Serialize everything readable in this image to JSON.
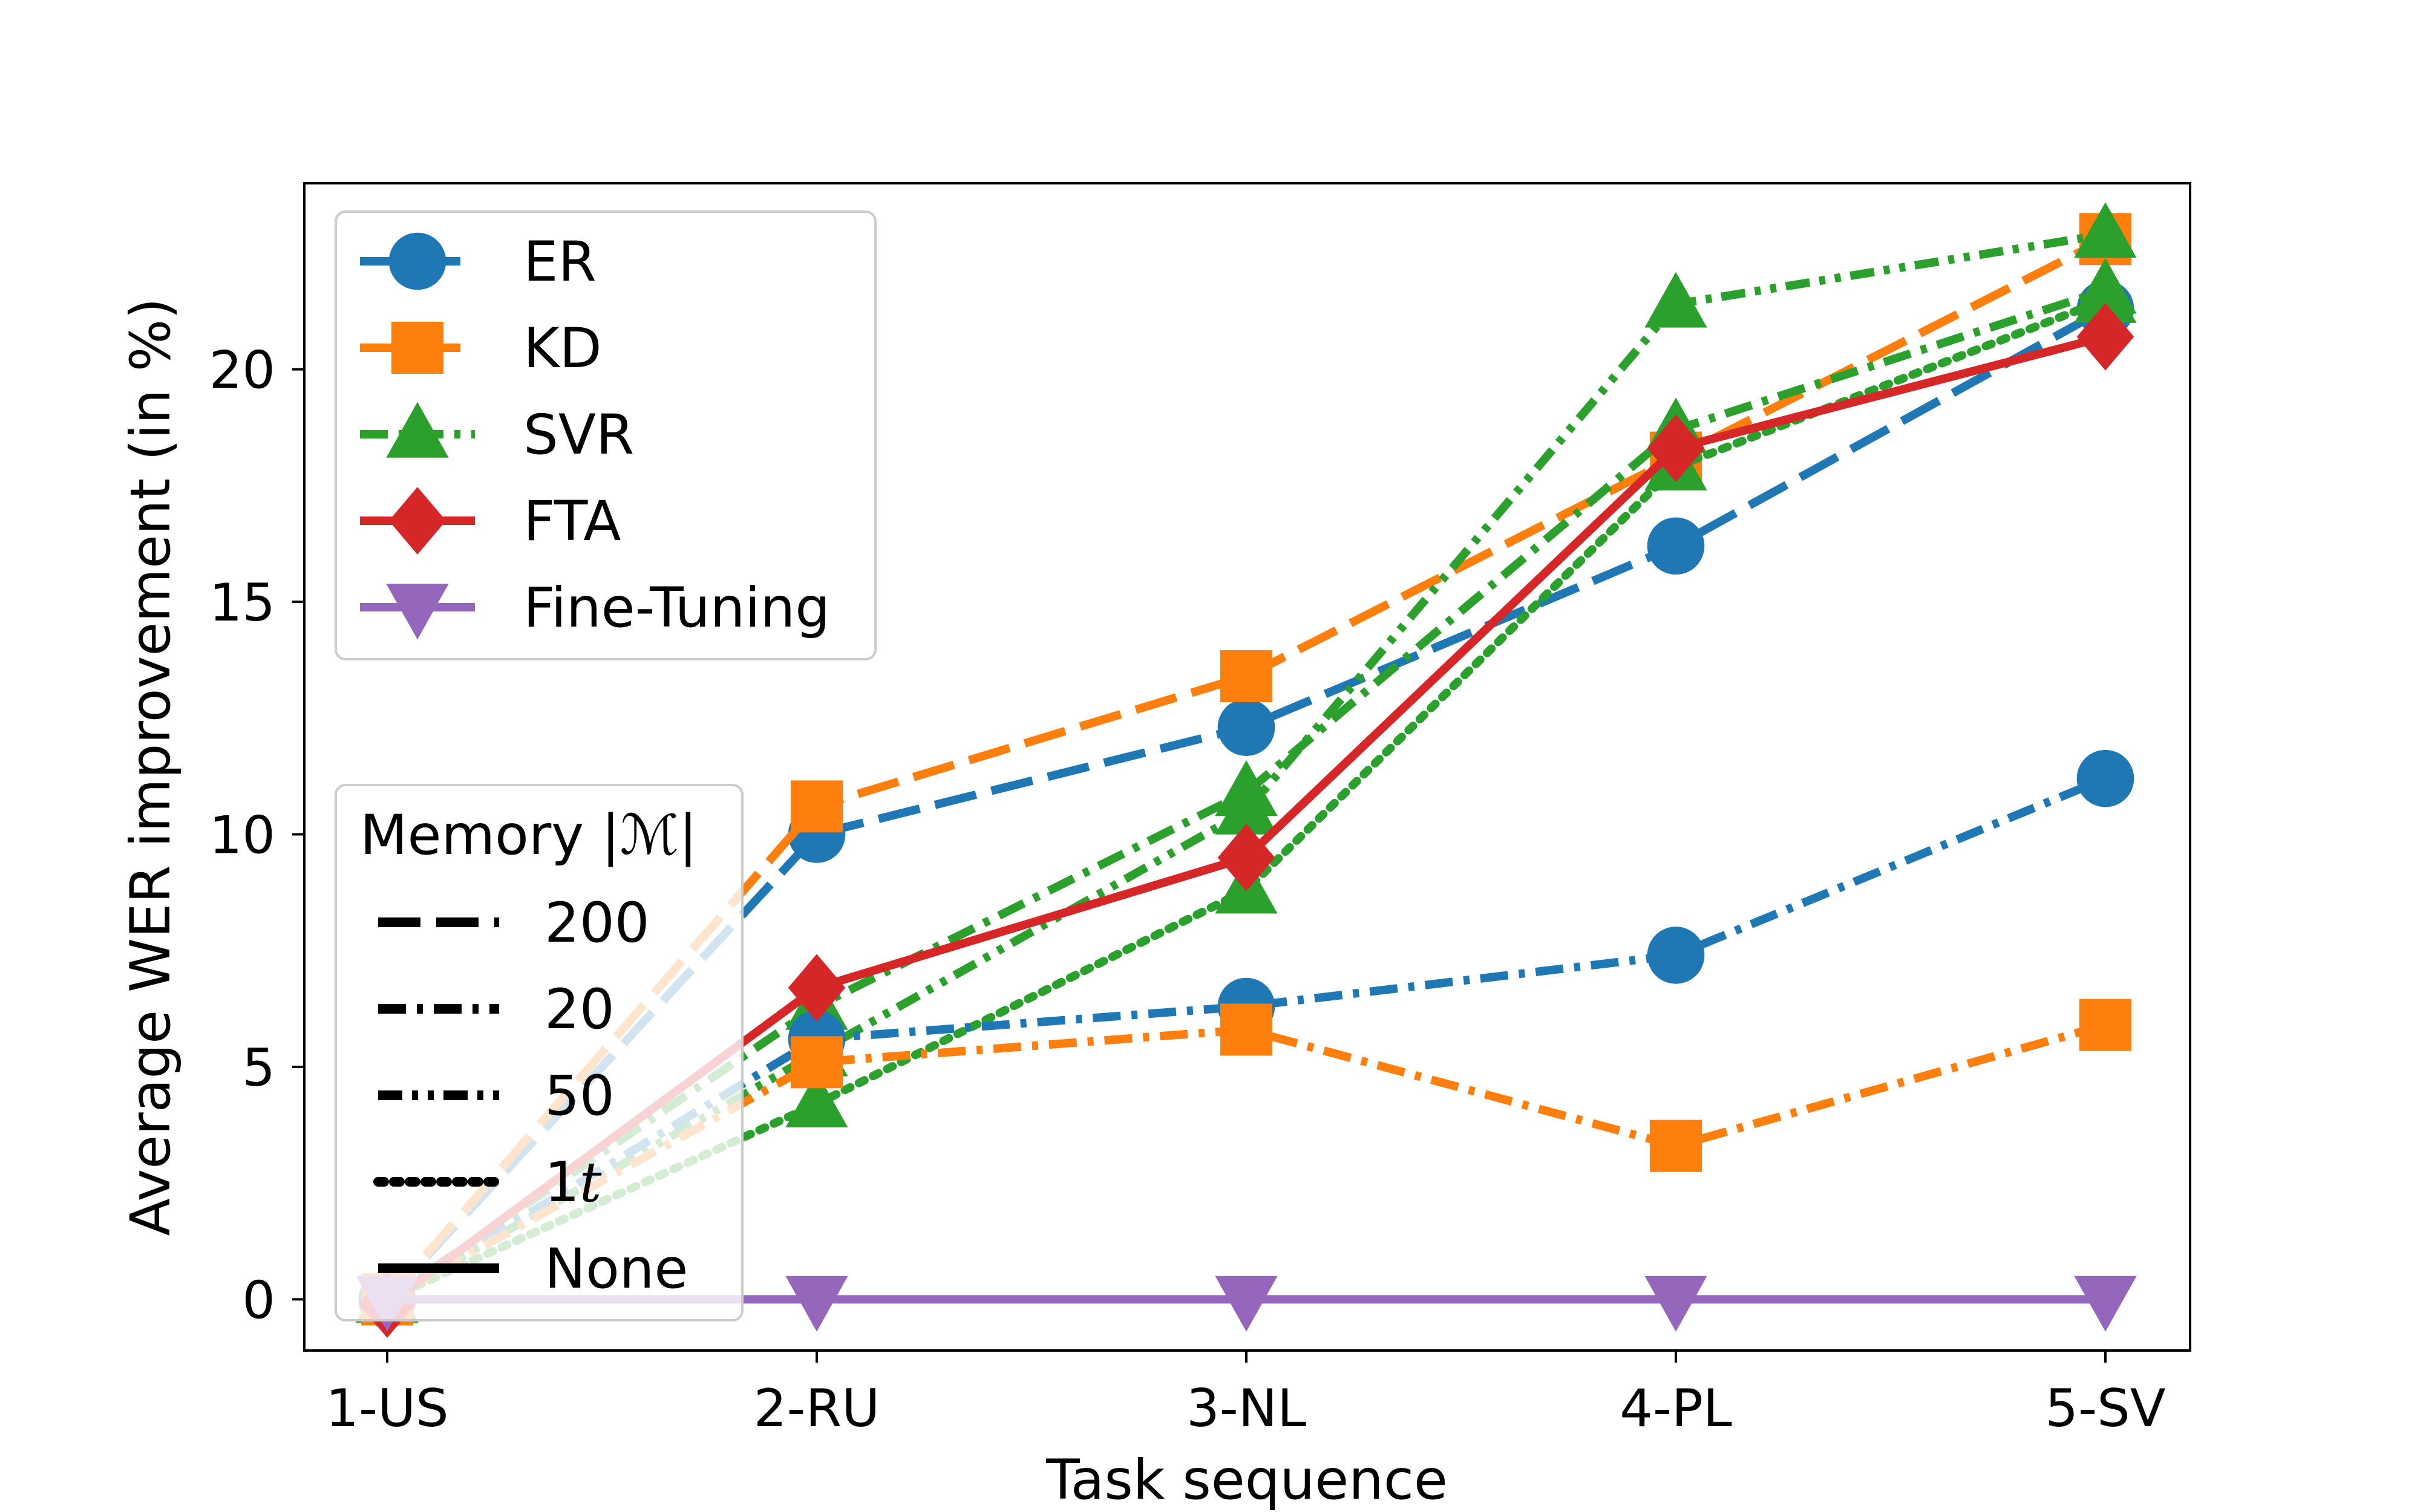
{
  "chart_data": {
    "type": "line",
    "title": "",
    "xlabel": "Task sequence",
    "ylabel": "Average WER improvement (in %)",
    "categories": [
      "1-US",
      "2-RU",
      "3-NL",
      "4-PL",
      "5-SV"
    ],
    "yticks": [
      "0",
      "5",
      "10",
      "15",
      "20"
    ],
    "ylim": [
      -1.1,
      24.0
    ],
    "grid": false,
    "methods": [
      {
        "name": "ER",
        "color": "#1f77b4",
        "marker": "circle"
      },
      {
        "name": "KD",
        "color": "#ff7f0e",
        "marker": "square"
      },
      {
        "name": "SVR",
        "color": "#2ca02c",
        "marker": "triangle-up"
      },
      {
        "name": "FTA",
        "color": "#d62728",
        "marker": "diamond"
      },
      {
        "name": "Fine-Tuning",
        "color": "#9467bd",
        "marker": "triangle-down"
      }
    ],
    "memory_legend": {
      "title": "Memory |ℳ|",
      "entries": [
        {
          "label": "200",
          "style": "long-dash"
        },
        {
          "label": "20",
          "style": "dash-dot"
        },
        {
          "label": "50",
          "style": "dash-dot-dot"
        },
        {
          "label": "1t",
          "style": "dotted"
        },
        {
          "label": "None",
          "style": "solid"
        }
      ]
    },
    "series": [
      {
        "name": "ER (200)",
        "method": "ER",
        "memory": "200",
        "values": [
          0,
          10.0,
          12.3,
          16.2,
          21.3
        ]
      },
      {
        "name": "KD (200)",
        "method": "KD",
        "memory": "200",
        "values": [
          0,
          10.6,
          13.4,
          18.1,
          22.8
        ]
      },
      {
        "name": "SVR (20)",
        "method": "SVR",
        "memory": "20",
        "values": [
          0,
          6.3,
          10.9,
          18.7,
          21.7
        ]
      },
      {
        "name": "SVR (50)",
        "method": "SVR",
        "memory": "50",
        "values": [
          0,
          5.3,
          10.5,
          21.4,
          22.9
        ]
      },
      {
        "name": "SVR (1t)",
        "method": "SVR",
        "memory": "1t",
        "values": [
          0,
          4.2,
          8.8,
          17.9,
          21.5
        ]
      },
      {
        "name": "ER (20)",
        "method": "ER",
        "memory": "20",
        "values": [
          0,
          5.6,
          6.3,
          7.4,
          11.2
        ]
      },
      {
        "name": "KD (20)",
        "method": "KD",
        "memory": "20",
        "values": [
          0,
          5.1,
          5.8,
          3.3,
          5.9
        ]
      },
      {
        "name": "FTA",
        "method": "FTA",
        "memory": "None",
        "values": [
          -0.1,
          6.7,
          9.5,
          18.3,
          20.7
        ]
      },
      {
        "name": "Fine-Tuning",
        "method": "Fine-Tuning",
        "memory": "None",
        "values": [
          0,
          0,
          0,
          0,
          0
        ]
      }
    ]
  }
}
